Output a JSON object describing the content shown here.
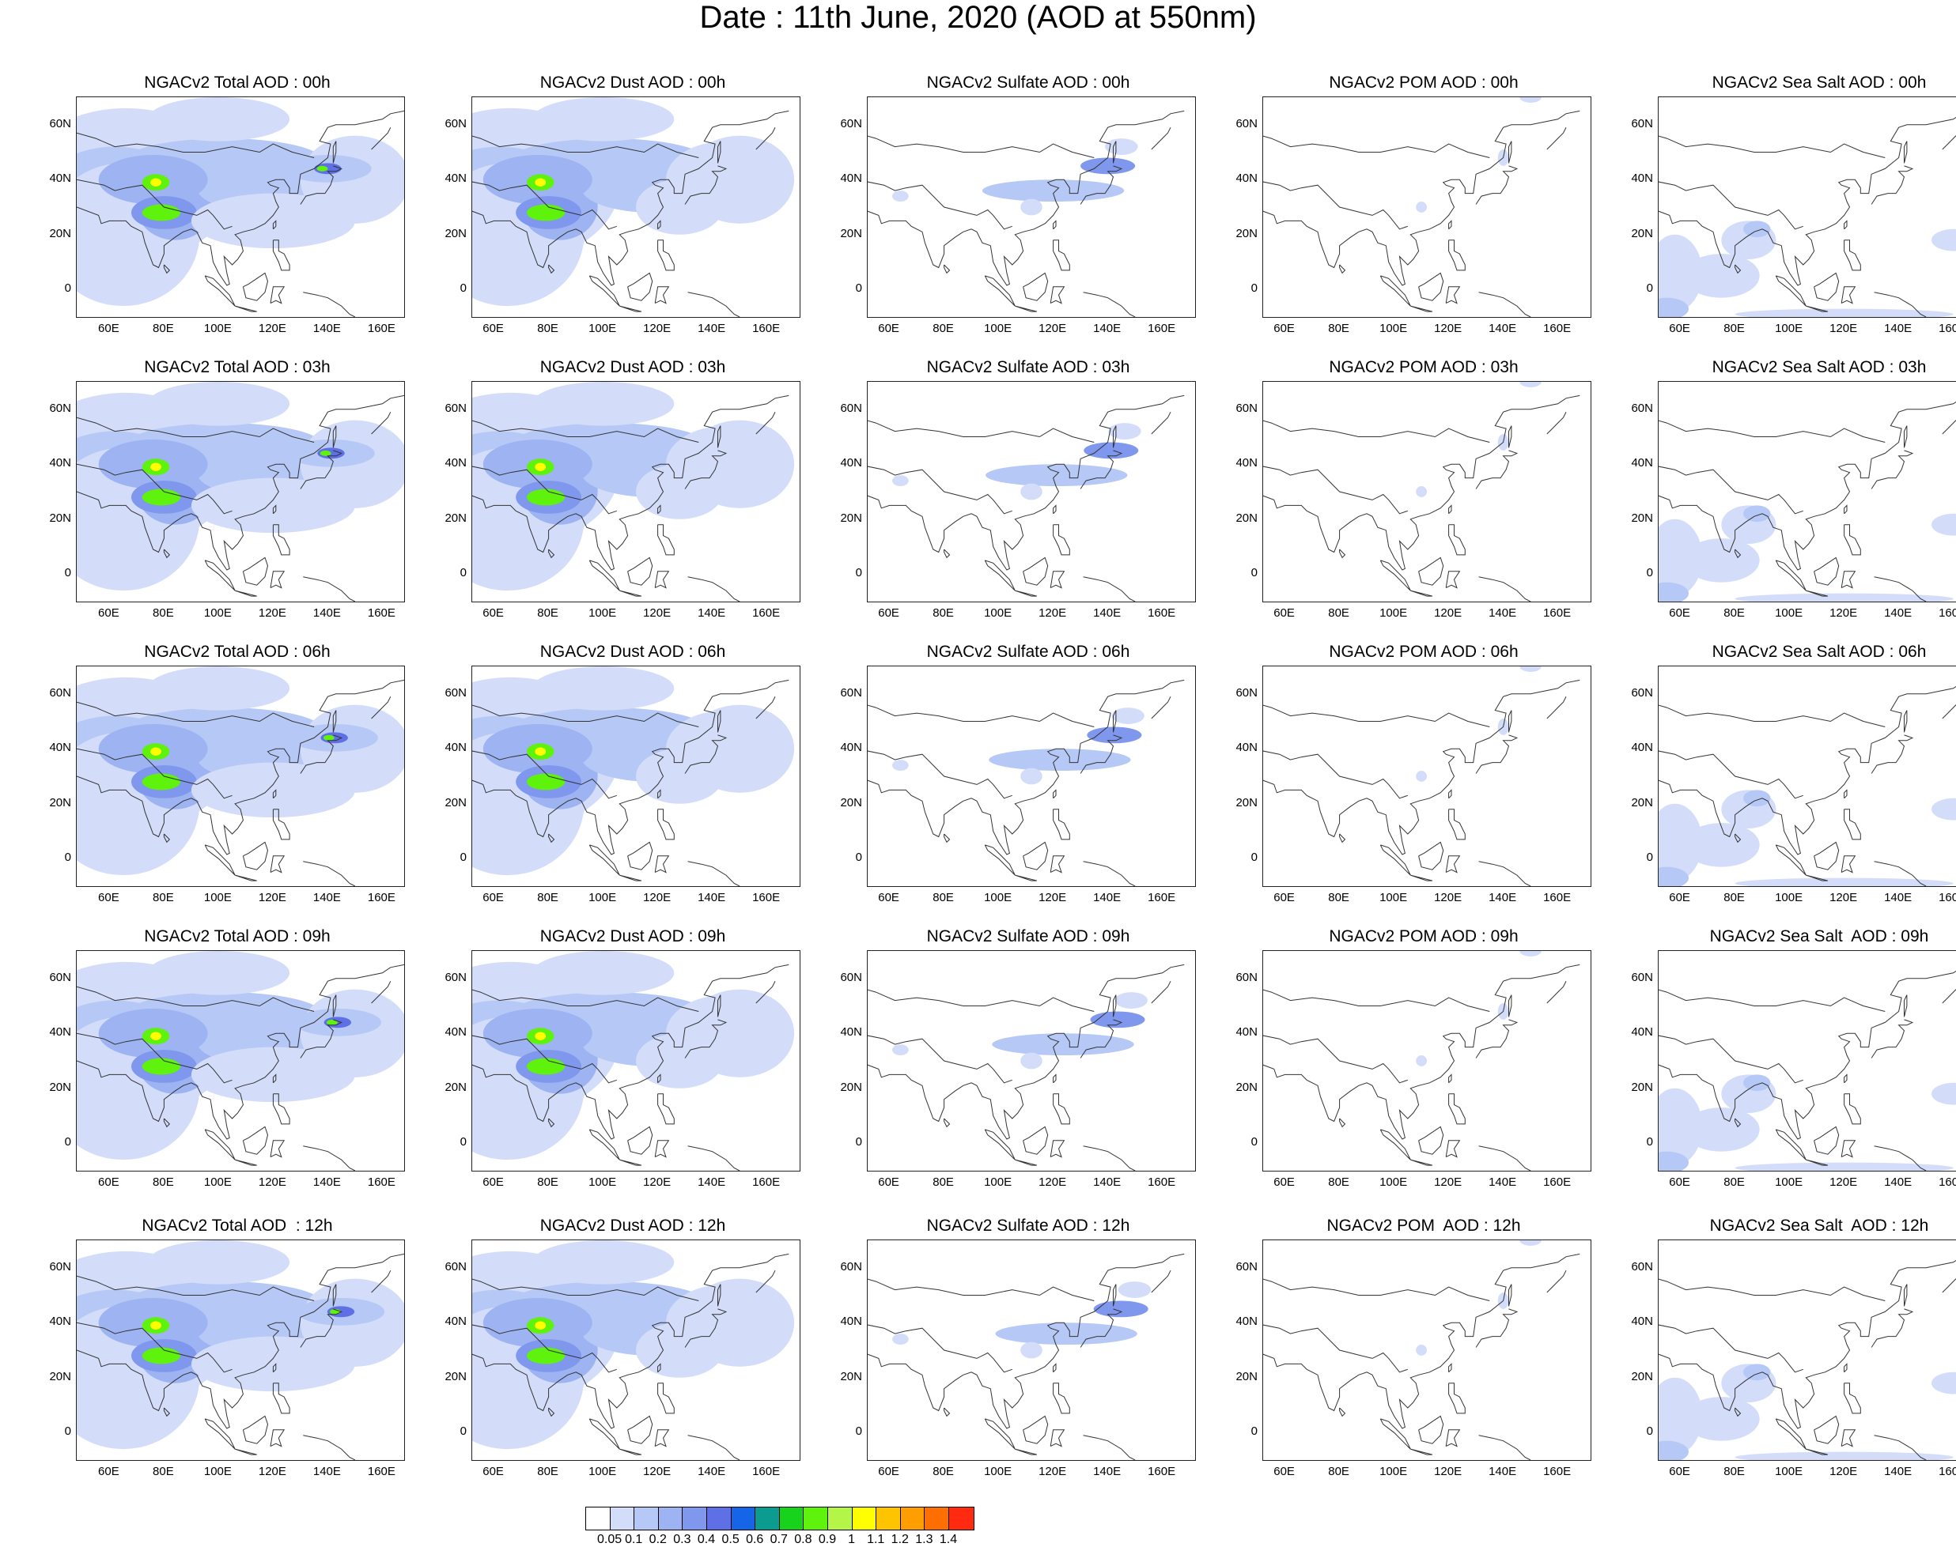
{
  "title": "Date : 11th June, 2020 (AOD at 550nm)",
  "y_ticks": [
    "60N",
    "40N",
    "20N",
    "0"
  ],
  "x_ticks_total": [
    "60E",
    "80E",
    "100E",
    "120E",
    "140E",
    "160E"
  ],
  "x_ticks_other": [
    "60E",
    "80E",
    "100E",
    "120E",
    "140E",
    "160E"
  ],
  "rows": [
    {
      "hour": "00h",
      "panels": [
        {
          "type": "total",
          "title": "NGACv2 Total AOD : 00h"
        },
        {
          "type": "dust",
          "title": "NGACv2 Dust AOD : 00h"
        },
        {
          "type": "sulfate",
          "title": "NGACv2 Sulfate AOD : 00h"
        },
        {
          "type": "pom",
          "title": "NGACv2 POM AOD : 00h"
        },
        {
          "type": "seasalt",
          "title": "NGACv2 Sea Salt AOD : 00h"
        }
      ]
    },
    {
      "hour": "03h",
      "panels": [
        {
          "type": "total",
          "title": "NGACv2 Total AOD : 03h"
        },
        {
          "type": "dust",
          "title": "NGACv2 Dust AOD : 03h"
        },
        {
          "type": "sulfate",
          "title": "NGACv2 Sulfate AOD : 03h"
        },
        {
          "type": "pom",
          "title": "NGACv2 POM AOD : 03h"
        },
        {
          "type": "seasalt",
          "title": "NGACv2 Sea Salt AOD : 03h"
        }
      ]
    },
    {
      "hour": "06h",
      "panels": [
        {
          "type": "total",
          "title": "NGACv2 Total AOD : 06h"
        },
        {
          "type": "dust",
          "title": "NGACv2 Dust AOD : 06h"
        },
        {
          "type": "sulfate",
          "title": "NGACv2 Sulfate AOD : 06h"
        },
        {
          "type": "pom",
          "title": "NGACv2 POM AOD : 06h"
        },
        {
          "type": "seasalt",
          "title": "NGACv2 Sea Salt AOD : 06h"
        }
      ]
    },
    {
      "hour": "09h",
      "panels": [
        {
          "type": "total",
          "title": "NGACv2 Total AOD : 09h"
        },
        {
          "type": "dust",
          "title": "NGACv2 Dust AOD : 09h"
        },
        {
          "type": "sulfate",
          "title": "NGACv2 Sulfate AOD : 09h"
        },
        {
          "type": "pom",
          "title": "NGACv2 POM AOD : 09h"
        },
        {
          "type": "seasalt",
          "title": "NGACv2 Sea Salt  AOD : 09h"
        }
      ]
    },
    {
      "hour": "12h",
      "panels": [
        {
          "type": "total",
          "title": "NGACv2 Total AOD  : 12h"
        },
        {
          "type": "dust",
          "title": "NGACv2 Dust AOD : 12h"
        },
        {
          "type": "sulfate",
          "title": "NGACv2 Sulfate AOD : 12h"
        },
        {
          "type": "pom",
          "title": "NGACv2 POM  AOD : 12h"
        },
        {
          "type": "seasalt",
          "title": "NGACv2 Sea Salt  AOD : 12h"
        }
      ]
    }
  ],
  "colorbar": {
    "labels": [
      "0.05",
      "0.1",
      "0.2",
      "0.3",
      "0.4",
      "0.5",
      "0.6",
      "0.7",
      "0.8",
      "0.9",
      "1",
      "1.1",
      "1.2",
      "1.3",
      "1.4"
    ],
    "colors": [
      "#ffffff",
      "#d3ddfa",
      "#b6c8f6",
      "#9eb4f2",
      "#8097ee",
      "#5f6fe6",
      "#1565e6",
      "#0b9b8f",
      "#19d21b",
      "#5ef20c",
      "#b5f547",
      "#ffff00",
      "#ffc400",
      "#ff9e00",
      "#ff6e00",
      "#ff2a10"
    ]
  }
}
